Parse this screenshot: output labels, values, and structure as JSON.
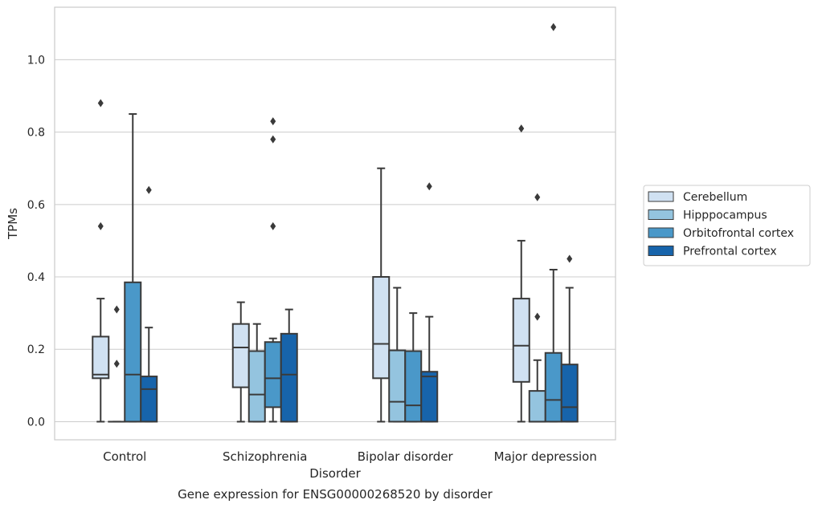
{
  "chart_data": {
    "type": "box",
    "title": "Gene expression for ENSG00000268520 by disorder",
    "xlabel": "Disorder",
    "ylabel": "TPMs",
    "ylim": [
      -0.05,
      1.145
    ],
    "yticks": [
      0.0,
      0.2,
      0.4,
      0.6,
      0.8,
      1.0
    ],
    "ytick_labels": [
      "0.0",
      "0.2",
      "0.4",
      "0.6",
      "0.8",
      "1.0"
    ],
    "grid": "horizontal",
    "legend_position": "right",
    "categories": [
      "Control",
      "Schizophrenia",
      "Bipolar disorder",
      "Major depression"
    ],
    "series": [
      {
        "name": "Cerebellum",
        "color": "#d0e1f2",
        "boxes": [
          {
            "whislo": 0.0,
            "q1": 0.12,
            "med": 0.13,
            "q3": 0.235,
            "whishi": 0.34,
            "fliers": [
              0.54,
              0.88
            ]
          },
          {
            "whislo": 0.0,
            "q1": 0.095,
            "med": 0.205,
            "q3": 0.27,
            "whishi": 0.33,
            "fliers": []
          },
          {
            "whislo": 0.0,
            "q1": 0.12,
            "med": 0.215,
            "q3": 0.4,
            "whishi": 0.7,
            "fliers": []
          },
          {
            "whislo": 0.0,
            "q1": 0.11,
            "med": 0.21,
            "q3": 0.34,
            "whishi": 0.5,
            "fliers": [
              0.81
            ]
          }
        ]
      },
      {
        "name": "Hipppocampus",
        "color": "#94c4df",
        "boxes": [
          {
            "whislo": 0.0,
            "q1": 0.0,
            "med": 0.0,
            "q3": 0.0,
            "whishi": 0.0,
            "fliers": [
              0.16,
              0.31
            ]
          },
          {
            "whislo": 0.0,
            "q1": 0.0,
            "med": 0.075,
            "q3": 0.195,
            "whishi": 0.27,
            "fliers": []
          },
          {
            "whislo": 0.0,
            "q1": 0.0,
            "med": 0.055,
            "q3": 0.197,
            "whishi": 0.37,
            "fliers": []
          },
          {
            "whislo": 0.0,
            "q1": 0.0,
            "med": 0.0,
            "q3": 0.085,
            "whishi": 0.17,
            "fliers": [
              0.29,
              0.62
            ]
          }
        ]
      },
      {
        "name": "Orbitofrontal cortex",
        "color": "#4a98c9",
        "boxes": [
          {
            "whislo": 0.0,
            "q1": 0.0,
            "med": 0.13,
            "q3": 0.385,
            "whishi": 0.85,
            "fliers": []
          },
          {
            "whislo": 0.0,
            "q1": 0.04,
            "med": 0.12,
            "q3": 0.22,
            "whishi": 0.23,
            "fliers": [
              0.54,
              0.78,
              0.83
            ]
          },
          {
            "whislo": 0.0,
            "q1": 0.0,
            "med": 0.045,
            "q3": 0.195,
            "whishi": 0.3,
            "fliers": []
          },
          {
            "whislo": 0.0,
            "q1": 0.0,
            "med": 0.06,
            "q3": 0.19,
            "whishi": 0.42,
            "fliers": [
              1.09
            ]
          }
        ]
      },
      {
        "name": "Prefrontal cortex",
        "color": "#1764ab",
        "boxes": [
          {
            "whislo": 0.0,
            "q1": 0.0,
            "med": 0.09,
            "q3": 0.125,
            "whishi": 0.26,
            "fliers": [
              0.64
            ]
          },
          {
            "whislo": 0.0,
            "q1": 0.0,
            "med": 0.13,
            "q3": 0.243,
            "whishi": 0.31,
            "fliers": []
          },
          {
            "whislo": 0.0,
            "q1": 0.0,
            "med": 0.125,
            "q3": 0.138,
            "whishi": 0.29,
            "fliers": [
              0.65
            ]
          },
          {
            "whislo": 0.0,
            "q1": 0.0,
            "med": 0.04,
            "q3": 0.158,
            "whishi": 0.37,
            "fliers": [
              0.45
            ]
          }
        ]
      }
    ]
  }
}
